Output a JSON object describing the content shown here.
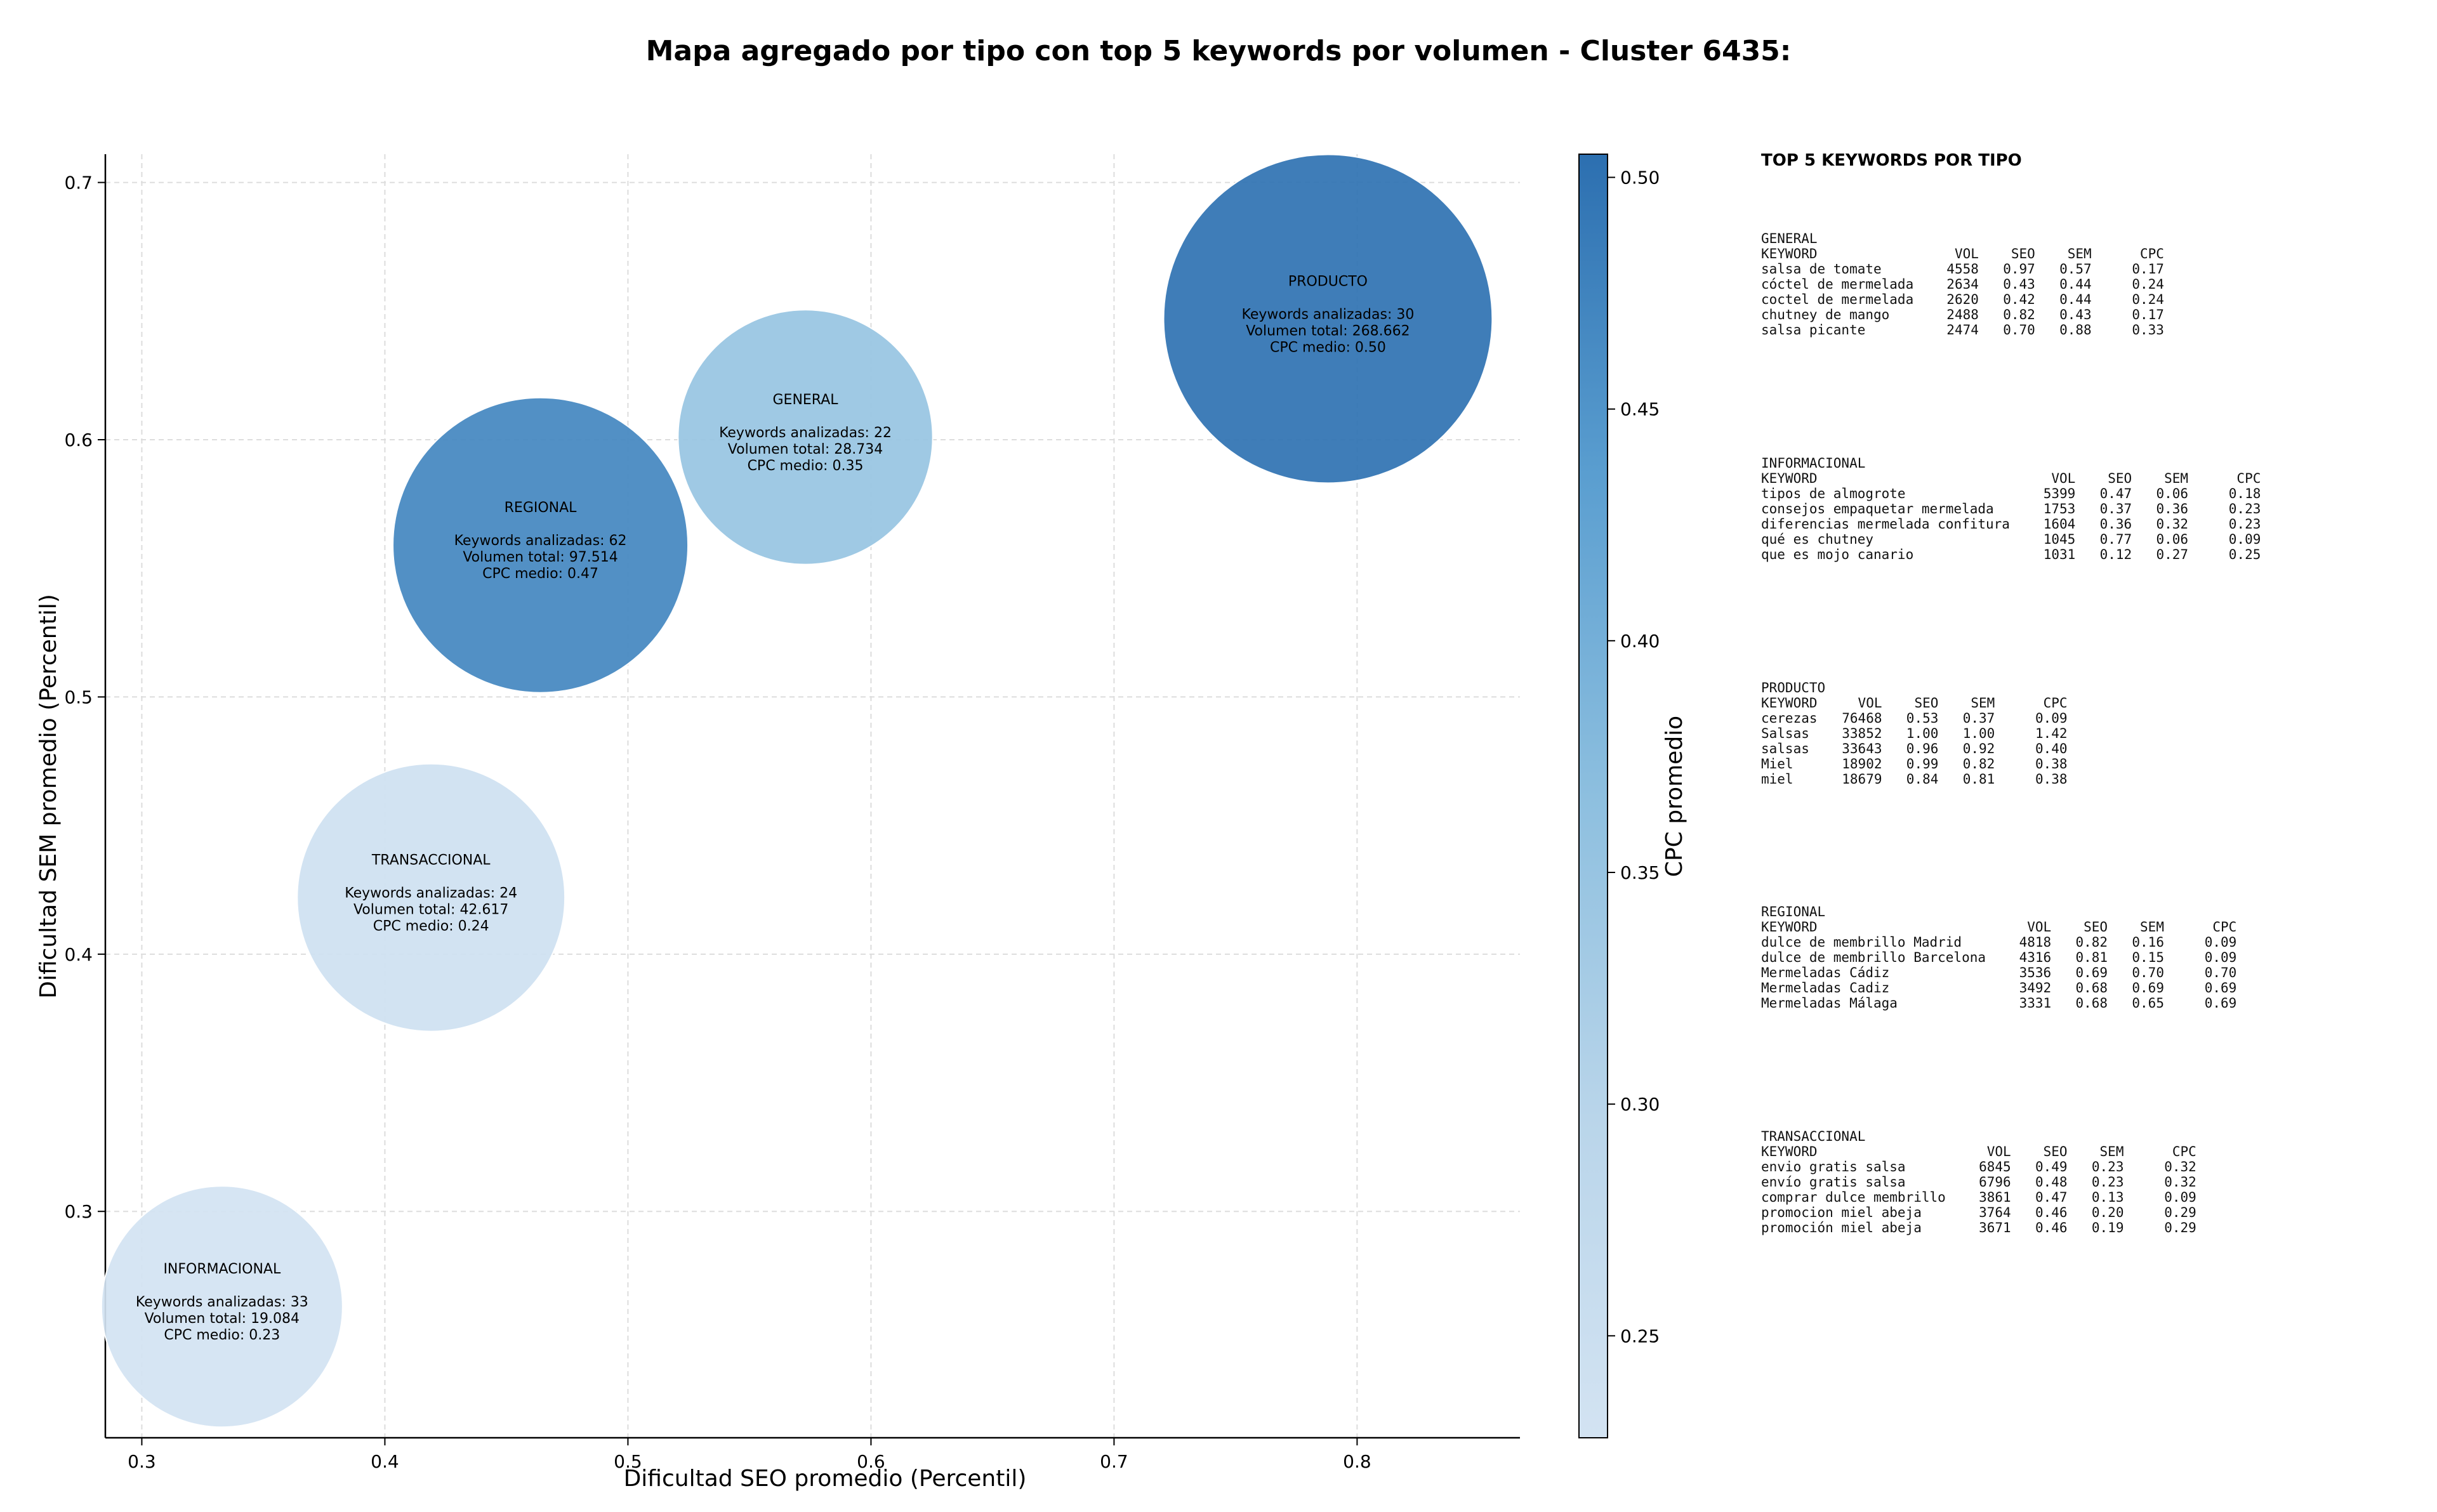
{
  "chart_data": {
    "type": "scatter",
    "title": "Mapa agregado por tipo con top 5 keywords por volumen - Cluster 6435:",
    "xlabel": "Dificultad SEO promedio (Percentil)",
    "ylabel": "Dificultad SEM promedio (Percentil)",
    "colorbar_label": "CPC promedio",
    "xlim": [
      0.285,
      0.867
    ],
    "ylim": [
      0.212,
      0.711
    ],
    "xticks": [
      "0.3",
      "0.4",
      "0.5",
      "0.6",
      "0.7",
      "0.8"
    ],
    "yticks": [
      "0.3",
      "0.4",
      "0.5",
      "0.6",
      "0.7"
    ],
    "colorbar_range": [
      0.228,
      0.505
    ],
    "colorbar_ticks": [
      "0.25",
      "0.30",
      "0.35",
      "0.40",
      "0.45",
      "0.50"
    ],
    "grid": true,
    "points": [
      {
        "name": "PRODUCTO",
        "x": 0.788,
        "y": 0.647,
        "cpc": 0.5,
        "text": [
          "Keywords analizadas: 30",
          "Volumen total: 268.662",
          "CPC medio: 0.50"
        ]
      },
      {
        "name": "GENERAL",
        "x": 0.573,
        "y": 0.601,
        "cpc": 0.35,
        "text": [
          "Keywords analizadas: 22",
          "Volumen total: 28.734",
          "CPC medio: 0.35"
        ]
      },
      {
        "name": "REGIONAL",
        "x": 0.464,
        "y": 0.559,
        "cpc": 0.47,
        "text": [
          "Keywords analizadas: 62",
          "Volumen total: 97.514",
          "CPC medio: 0.47"
        ]
      },
      {
        "name": "TRANSACCIONAL",
        "x": 0.419,
        "y": 0.422,
        "cpc": 0.24,
        "text": [
          "Keywords analizadas: 24",
          "Volumen total: 42.617",
          "CPC medio: 0.24"
        ]
      },
      {
        "name": "INFORMACIONAL",
        "x": 0.333,
        "y": 0.263,
        "cpc": 0.23,
        "text": [
          "Keywords analizadas: 33",
          "Volumen total: 19.084",
          "CPC medio: 0.23"
        ]
      }
    ]
  },
  "side_panel": {
    "title": "TOP 5 KEYWORDS POR TIPO",
    "header": [
      "KEYWORD",
      "VOL",
      "SEO",
      "SEM",
      "CPC"
    ],
    "groups": [
      {
        "name": "GENERAL",
        "rows": [
          [
            "salsa de tomate",
            "4558",
            "0.97",
            "0.57",
            "0.17"
          ],
          [
            "cóctel de mermelada",
            "2634",
            "0.43",
            "0.44",
            "0.24"
          ],
          [
            "coctel de mermelada",
            "2620",
            "0.42",
            "0.44",
            "0.24"
          ],
          [
            "chutney de mango",
            "2488",
            "0.82",
            "0.43",
            "0.17"
          ],
          [
            "salsa picante",
            "2474",
            "0.70",
            "0.88",
            "0.33"
          ]
        ]
      },
      {
        "name": "INFORMACIONAL",
        "rows": [
          [
            "tipos de almogrote",
            "5399",
            "0.47",
            "0.06",
            "0.18"
          ],
          [
            "consejos empaquetar mermelada",
            "1753",
            "0.37",
            "0.36",
            "0.23"
          ],
          [
            "diferencias mermelada confitura",
            "1604",
            "0.36",
            "0.32",
            "0.23"
          ],
          [
            "qué es chutney",
            "1045",
            "0.77",
            "0.06",
            "0.09"
          ],
          [
            "que es mojo canario",
            "1031",
            "0.12",
            "0.27",
            "0.25"
          ]
        ]
      },
      {
        "name": "PRODUCTO",
        "rows": [
          [
            "cerezas",
            "76468",
            "0.53",
            "0.37",
            "0.09"
          ],
          [
            "Salsas",
            "33852",
            "1.00",
            "1.00",
            "1.42"
          ],
          [
            "salsas",
            "33643",
            "0.96",
            "0.92",
            "0.40"
          ],
          [
            "Miel",
            "18902",
            "0.99",
            "0.82",
            "0.38"
          ],
          [
            "miel",
            "18679",
            "0.84",
            "0.81",
            "0.38"
          ]
        ]
      },
      {
        "name": "REGIONAL",
        "rows": [
          [
            "dulce de membrillo Madrid",
            "4818",
            "0.82",
            "0.16",
            "0.09"
          ],
          [
            "dulce de membrillo Barcelona",
            "4316",
            "0.81",
            "0.15",
            "0.09"
          ],
          [
            "Mermeladas Cádiz",
            "3536",
            "0.69",
            "0.70",
            "0.70"
          ],
          [
            "Mermeladas Cadiz",
            "3492",
            "0.68",
            "0.69",
            "0.69"
          ],
          [
            "Mermeladas Málaga",
            "3331",
            "0.68",
            "0.65",
            "0.69"
          ]
        ]
      },
      {
        "name": "TRANSACCIONAL",
        "rows": [
          [
            "envio gratis salsa",
            "6845",
            "0.49",
            "0.23",
            "0.32"
          ],
          [
            "envío gratis salsa",
            "6796",
            "0.48",
            "0.23",
            "0.32"
          ],
          [
            "comprar dulce membrillo",
            "3861",
            "0.47",
            "0.13",
            "0.09"
          ],
          [
            "promocion miel abeja",
            "3764",
            "0.46",
            "0.20",
            "0.29"
          ],
          [
            "promoción miel abeja",
            "3671",
            "0.46",
            "0.19",
            "0.29"
          ]
        ]
      }
    ]
  }
}
